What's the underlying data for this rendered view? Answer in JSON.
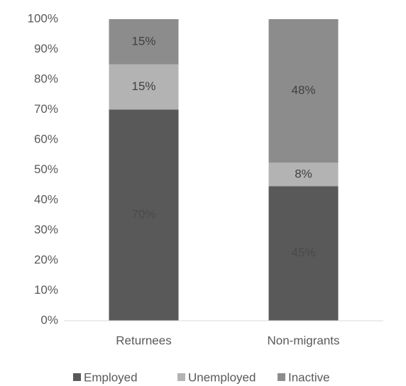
{
  "chart_data": {
    "type": "stacked_bar",
    "categories": [
      "Returnees",
      "Non-migrants"
    ],
    "series": [
      {
        "name": "Employed",
        "color": "#595959",
        "values": [
          70,
          44.6
        ],
        "value_labels": [
          "70%",
          "45%"
        ]
      },
      {
        "name": "Unemployed",
        "color": "#b3b3b3",
        "values": [
          15,
          7.8
        ],
        "value_labels": [
          "15%",
          "8%"
        ]
      },
      {
        "name": "Inactive",
        "color": "#8c8c8c",
        "values": [
          15,
          47.6
        ],
        "value_labels": [
          "15%",
          "48%"
        ]
      }
    ],
    "ylim": [
      0,
      100
    ],
    "yticks": [
      {
        "value": 0,
        "label": "0%"
      },
      {
        "value": 10,
        "label": "10%"
      },
      {
        "value": 20,
        "label": "20%"
      },
      {
        "value": 30,
        "label": "30%"
      },
      {
        "value": 40,
        "label": "40%"
      },
      {
        "value": 50,
        "label": "50%"
      },
      {
        "value": 60,
        "label": "60%"
      },
      {
        "value": 70,
        "label": "70%"
      },
      {
        "value": 80,
        "label": "80%"
      },
      {
        "value": 90,
        "label": "90%"
      },
      {
        "value": 100,
        "label": "100%"
      }
    ],
    "grid": false,
    "legend": "bottom"
  }
}
